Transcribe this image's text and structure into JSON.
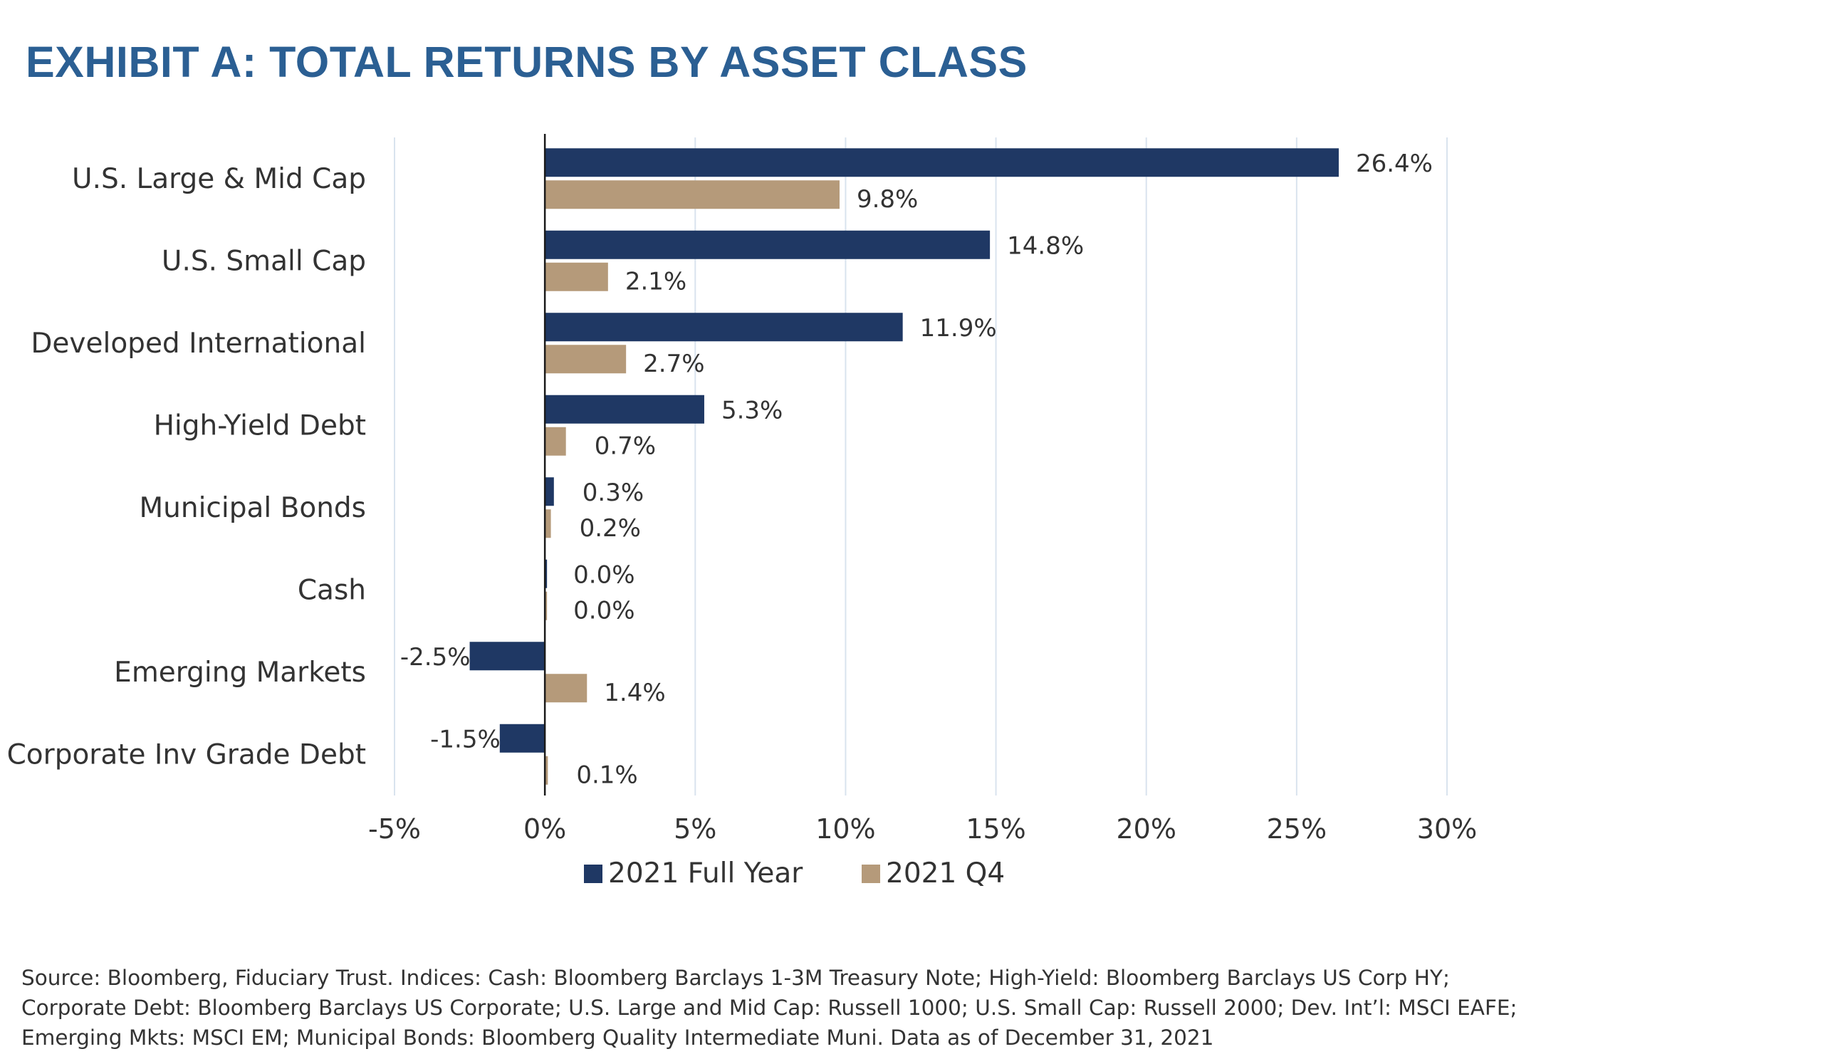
{
  "title": "EXHIBIT A: TOTAL RETURNS BY ASSET CLASS",
  "chart_data": {
    "type": "bar",
    "orientation": "horizontal",
    "categories": [
      "U.S. Large & Mid Cap",
      "U.S. Small Cap",
      "Developed International",
      "High-Yield Debt",
      "Municipal Bonds",
      "Cash",
      "Emerging Markets",
      "Corporate Inv Grade Debt"
    ],
    "series": [
      {
        "name": "2021 Full Year",
        "color": "#1f3864",
        "values": [
          26.4,
          14.8,
          11.9,
          5.3,
          0.3,
          0.0,
          -2.5,
          -1.5
        ],
        "labels": [
          "26.4%",
          "14.8%",
          "11.9%",
          "5.3%",
          "0.3%",
          "0.0%",
          "-2.5%",
          "-1.5%"
        ]
      },
      {
        "name": "2021 Q4",
        "color": "#b59a7a",
        "values": [
          9.8,
          2.1,
          2.7,
          0.7,
          0.2,
          0.0,
          1.4,
          0.1
        ],
        "labels": [
          "9.8%",
          "2.1%",
          "2.7%",
          "0.7%",
          "0.2%",
          "0.0%",
          "1.4%",
          "0.1%"
        ]
      }
    ],
    "xlim": [
      -5,
      30
    ],
    "x_ticks": [
      -5,
      0,
      5,
      10,
      15,
      20,
      25,
      30
    ],
    "x_tick_labels": [
      "-5%",
      "0%",
      "5%",
      "10%",
      "15%",
      "20%",
      "25%",
      "30%"
    ],
    "grid": true,
    "legend": "bottom"
  },
  "source_lines": [
    "Source: Bloomberg, Fiduciary Trust. Indices: Cash: Bloomberg Barclays 1-3M Treasury Note; High-Yield: Bloomberg Barclays US Corp HY;",
    "Corporate Debt: Bloomberg Barclays US Corporate; U.S. Large and Mid Cap: Russell 1000; U.S. Small Cap: Russell 2000; Dev. Int’l: MSCI EAFE;",
    "Emerging Mkts: MSCI EM; Municipal Bonds: Bloomberg Quality Intermediate Muni. Data as of December 31, 2021"
  ]
}
